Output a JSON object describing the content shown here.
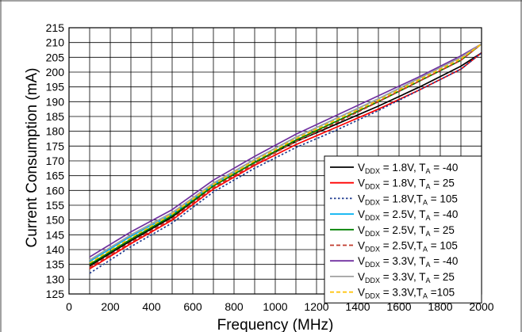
{
  "chart_data": {
    "type": "line",
    "xlabel": "Frequency (MHz)",
    "ylabel": "Current Consumption (mA)",
    "xlim": [
      0,
      2000
    ],
    "ylim": [
      125,
      215
    ],
    "x_ticks": [
      0,
      200,
      400,
      600,
      800,
      1000,
      1200,
      1400,
      1600,
      1800,
      2000
    ],
    "y_ticks": [
      125,
      130,
      135,
      140,
      145,
      150,
      155,
      160,
      165,
      170,
      175,
      180,
      185,
      190,
      195,
      200,
      205,
      210,
      215
    ],
    "x_grid_step": 100,
    "y_grid_step": 5,
    "grid": true,
    "legend_position": "bottom-right",
    "series": [
      {
        "name": "V_DDX = 1.8V, T_A = -40",
        "color": "#000000",
        "dash": "solid",
        "x": [
          100,
          300,
          500,
          700,
          900,
          1100,
          1300,
          1500,
          1700,
          1900,
          2000
        ],
        "y": [
          134.5,
          143,
          151,
          161.5,
          169.5,
          176.5,
          182.5,
          188.5,
          195,
          202,
          206.5
        ]
      },
      {
        "name": "V_DDX = 1.8V, T_A = 25",
        "color": "#ff0000",
        "dash": "solid",
        "x": [
          100,
          300,
          500,
          700,
          900,
          1100,
          1300,
          1500,
          1700,
          1900,
          2000
        ],
        "y": [
          133.5,
          142,
          150,
          160.5,
          168.5,
          175.5,
          181.5,
          187.5,
          194,
          201,
          206.5
        ]
      },
      {
        "name": "V_DDX = 1.8V,T_A = 105",
        "color": "#1f3b8f",
        "dash": "dotted",
        "x": [
          100,
          300,
          500,
          700,
          900,
          1100,
          1300,
          1500,
          1700,
          1900,
          2000
        ],
        "y": [
          132,
          141,
          149,
          159.5,
          167.5,
          174.5,
          180.5,
          187,
          194,
          201,
          206.5
        ]
      },
      {
        "name": "V_DDX = 2.5V, T_A = -40",
        "color": "#00b0f0",
        "dash": "solid",
        "x": [
          100,
          300,
          500,
          700,
          900,
          1100,
          1300,
          1500,
          1700,
          1900,
          2000
        ],
        "y": [
          136,
          144.5,
          152,
          162,
          170.5,
          178,
          184.5,
          191,
          198,
          205,
          209.5
        ]
      },
      {
        "name": "V_DDX = 2.5V, T_A = 25",
        "color": "#008000",
        "dash": "solid",
        "x": [
          100,
          300,
          500,
          700,
          900,
          1100,
          1300,
          1500,
          1700,
          1900,
          2000
        ],
        "y": [
          135,
          143.5,
          151.5,
          161.5,
          169.5,
          177,
          183.5,
          190,
          197,
          204,
          209.5
        ]
      },
      {
        "name": "V_DDX = 2.5V,T_A = 105",
        "color": "#c0392b",
        "dash": "dashed",
        "x": [
          100,
          300,
          500,
          700,
          900,
          1100,
          1300,
          1500,
          1700,
          1900,
          2000
        ],
        "y": [
          134,
          142.5,
          150.5,
          161,
          169,
          176.5,
          183,
          190,
          197,
          204,
          209.5
        ]
      },
      {
        "name": "V_DDX = 3.3V, T_A = -40",
        "color": "#7030a0",
        "dash": "solid",
        "x": [
          100,
          300,
          500,
          700,
          900,
          1100,
          1300,
          1500,
          1700,
          1900,
          2000
        ],
        "y": [
          137.5,
          146,
          153.5,
          163.5,
          171.5,
          179,
          185.5,
          192,
          198.5,
          205.5,
          209.5
        ]
      },
      {
        "name": "V_DDX = 3.3V, T_A = 25",
        "color": "#a0a0a0",
        "dash": "solid",
        "x": [
          100,
          300,
          500,
          700,
          900,
          1100,
          1300,
          1500,
          1700,
          1900,
          2000
        ],
        "y": [
          136.5,
          145,
          152.5,
          162.5,
          170.5,
          178,
          184.5,
          191,
          198,
          205,
          209.5
        ]
      },
      {
        "name": "V_DDX = 3.3V,T_A =105",
        "color": "#ffc000",
        "dash": "dashed",
        "x": [
          100,
          300,
          500,
          700,
          900,
          1100,
          1300,
          1500,
          1700,
          1900,
          2000
        ],
        "y": [
          135.5,
          144,
          152,
          162,
          170,
          177.5,
          184,
          190.5,
          197.5,
          204.5,
          209.5
        ]
      }
    ],
    "legend_labels": [
      {
        "v": "1.8V",
        "sep": ", ",
        "t": "= -40"
      },
      {
        "v": "1.8V",
        "sep": ", ",
        "t": "= 25"
      },
      {
        "v": "1.8V",
        "sep": ",",
        "t": "= 105"
      },
      {
        "v": "2.5V",
        "sep": ", ",
        "t": "= -40"
      },
      {
        "v": "2.5V",
        "sep": ", ",
        "t": "= 25"
      },
      {
        "v": "2.5V",
        "sep": ",",
        "t": "= 105"
      },
      {
        "v": "3.3V",
        "sep": ", ",
        "t": "= -40"
      },
      {
        "v": "3.3V",
        "sep": ", ",
        "t": "= 25"
      },
      {
        "v": "3.3V",
        "sep": ",",
        "t": "=105"
      }
    ]
  }
}
